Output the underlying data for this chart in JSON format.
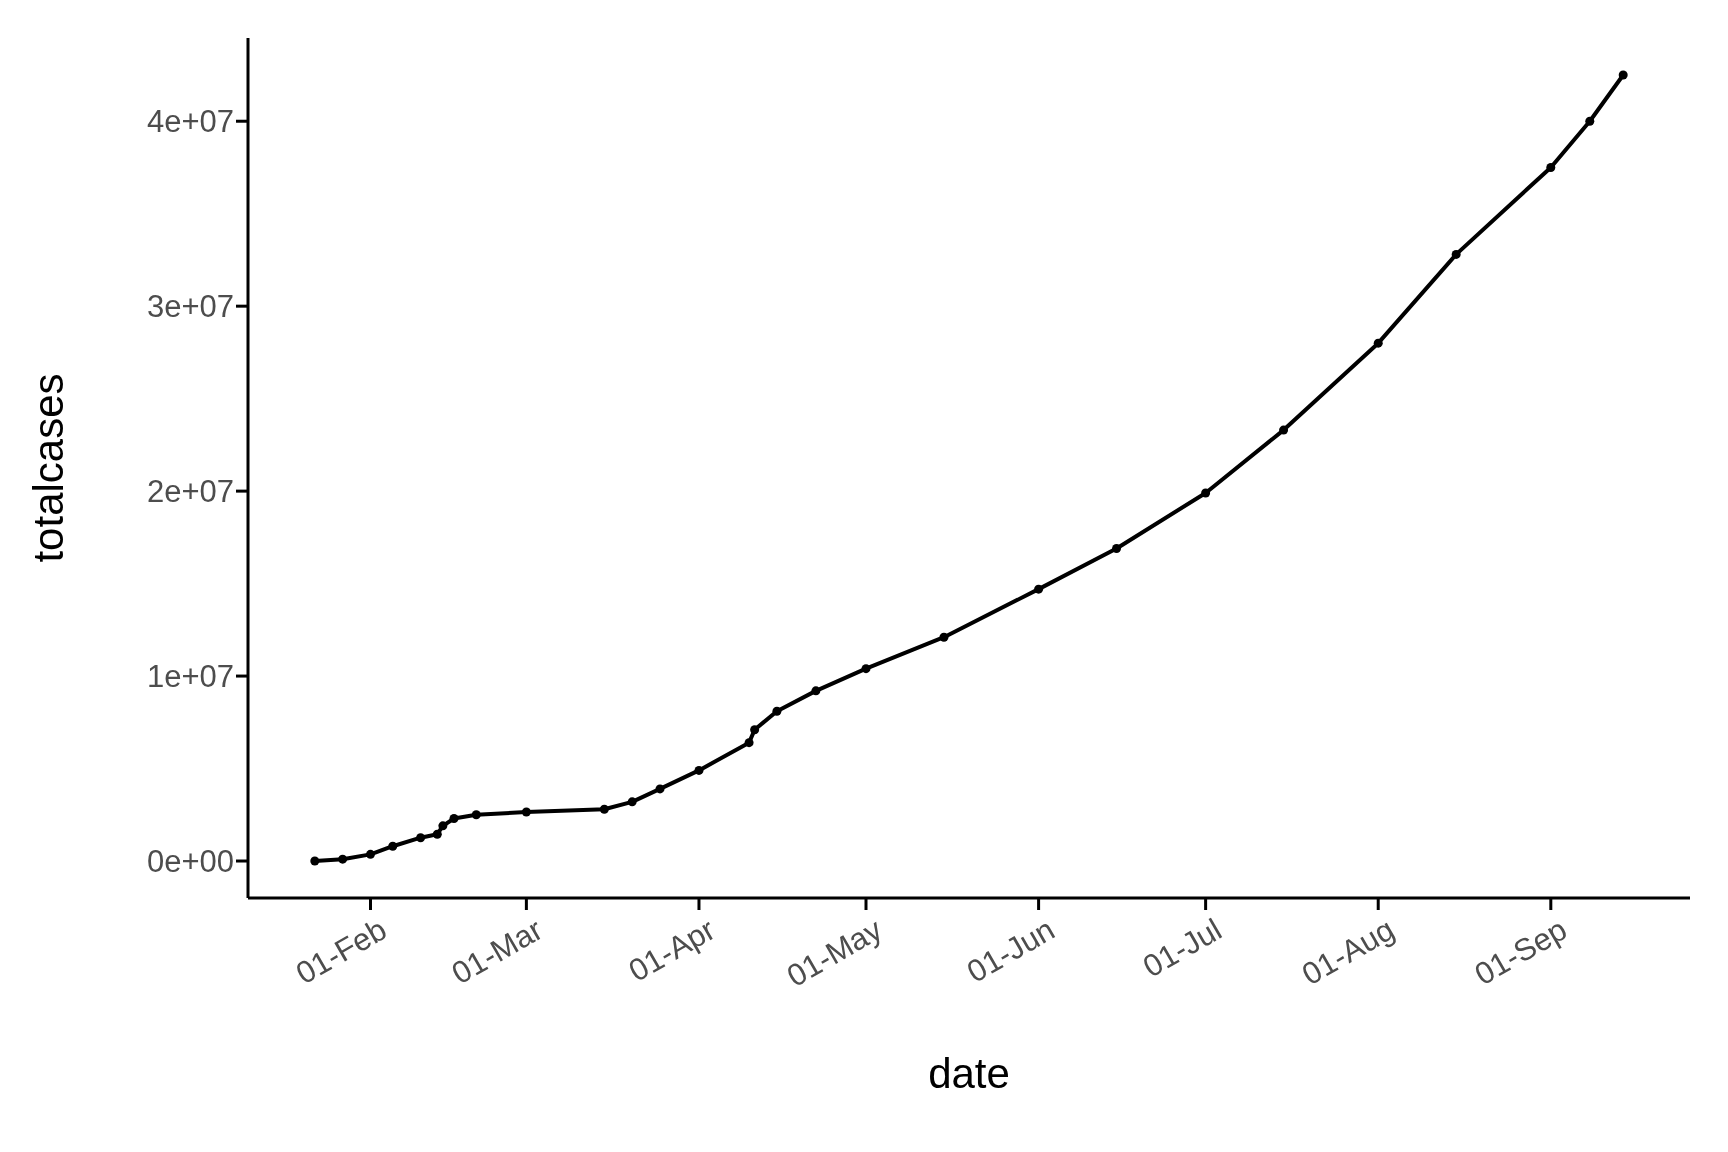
{
  "chart_data": {
    "type": "line",
    "xlabel": "date",
    "ylabel": "totalcases",
    "marker": "circle",
    "line_style": "solid",
    "grid": false,
    "legend": false,
    "x": [
      "--01-22",
      "--01-27",
      "--02-01",
      "--02-05",
      "--02-10",
      "--02-13",
      "--02-14",
      "--02-16",
      "--02-20",
      "--03-01",
      "--03-15",
      "--03-20",
      "--03-25",
      "--04-01",
      "--04-10",
      "--04-11",
      "--04-15",
      "--04-22",
      "--05-01",
      "--05-15",
      "--06-01",
      "--06-15",
      "--07-01",
      "--07-15",
      "--08-01",
      "--08-15",
      "--09-01",
      "--09-08",
      "--09-14"
    ],
    "series": [
      {
        "color": "#000000",
        "values": [
          0,
          100000,
          360000,
          800000,
          1260000,
          1450000,
          1900000,
          2300000,
          2500000,
          2650000,
          2800000,
          3200000,
          3900000,
          4900000,
          6400000,
          7100000,
          8100000,
          9200000,
          10400000,
          12100000,
          14700000,
          16900000,
          19900000,
          23300000,
          28000000,
          32800000,
          37500000,
          40000000,
          42500000
        ]
      }
    ],
    "xlim": [
      "--01-10",
      "--09-26"
    ],
    "xticks": [
      {
        "value": "--02-01",
        "label": "01-Feb"
      },
      {
        "value": "--03-01",
        "label": "01-Mar"
      },
      {
        "value": "--04-01",
        "label": "01-Apr"
      },
      {
        "value": "--05-01",
        "label": "01-May"
      },
      {
        "value": "--06-01",
        "label": "01-Jun"
      },
      {
        "value": "--07-01",
        "label": "01-Jul"
      },
      {
        "value": "--08-01",
        "label": "01-Aug"
      },
      {
        "value": "--09-01",
        "label": "01-Sep"
      }
    ],
    "ylim": [
      -2000000,
      44500000
    ],
    "yticks": [
      {
        "value": 0,
        "label": "0e+00"
      },
      {
        "value": 10000000,
        "label": "1e+07"
      },
      {
        "value": 20000000,
        "label": "2e+07"
      },
      {
        "value": 30000000,
        "label": "3e+07"
      },
      {
        "value": 40000000,
        "label": "4e+07"
      }
    ]
  }
}
